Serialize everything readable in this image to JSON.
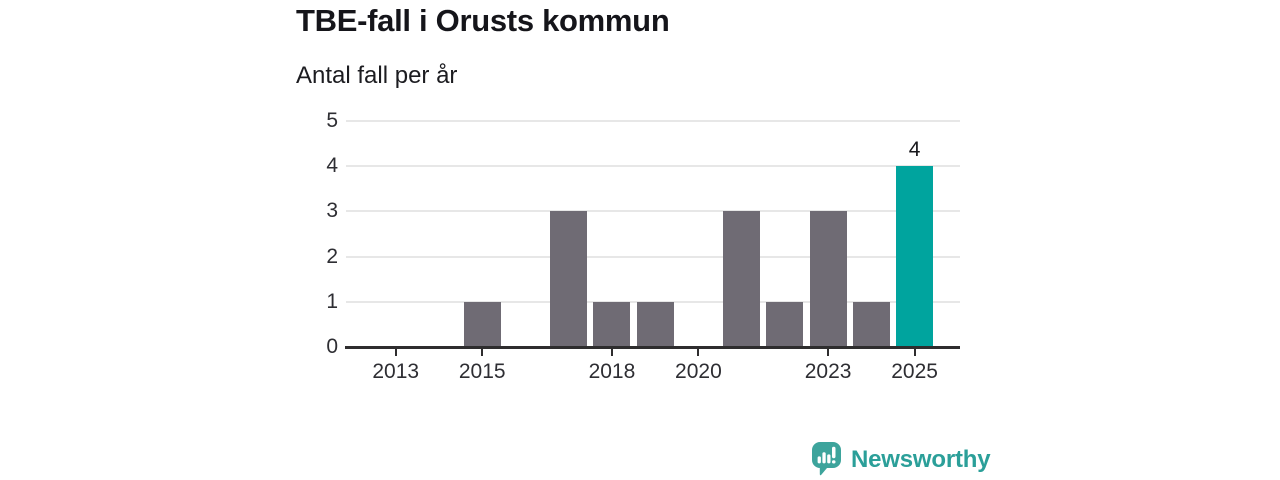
{
  "chart_data": {
    "type": "bar",
    "title": "TBE-fall i Orusts kommun",
    "subtitle": "Antal fall per år",
    "x": [
      2012,
      2013,
      2014,
      2015,
      2016,
      2017,
      2018,
      2019,
      2020,
      2021,
      2022,
      2023,
      2024,
      2025
    ],
    "values": [
      0,
      0,
      0,
      1,
      0,
      3,
      1,
      1,
      0,
      3,
      1,
      3,
      1,
      4
    ],
    "xlabel": "",
    "ylabel": "Antal fall per år",
    "ylim": [
      0,
      5
    ],
    "yticks": [
      0,
      1,
      2,
      3,
      4,
      5
    ],
    "xticks": [
      2013,
      2015,
      2018,
      2020,
      2023,
      2025
    ],
    "xlim": [
      2011.85,
      2026.05
    ],
    "grid": true,
    "legend": "none",
    "bar_color": "#6f6b74",
    "highlight_year": 2025,
    "highlight_color": "#00a49e",
    "value_labels": [
      {
        "x": 2025,
        "text": "4"
      }
    ]
  },
  "branding": {
    "logo_text": "Newsworthy",
    "logo_text_color": "#2b9f99",
    "logo_icon": "newsworthy-speech-bubble-bar-chart-icon",
    "logo_icon_color": "#3da49c"
  }
}
